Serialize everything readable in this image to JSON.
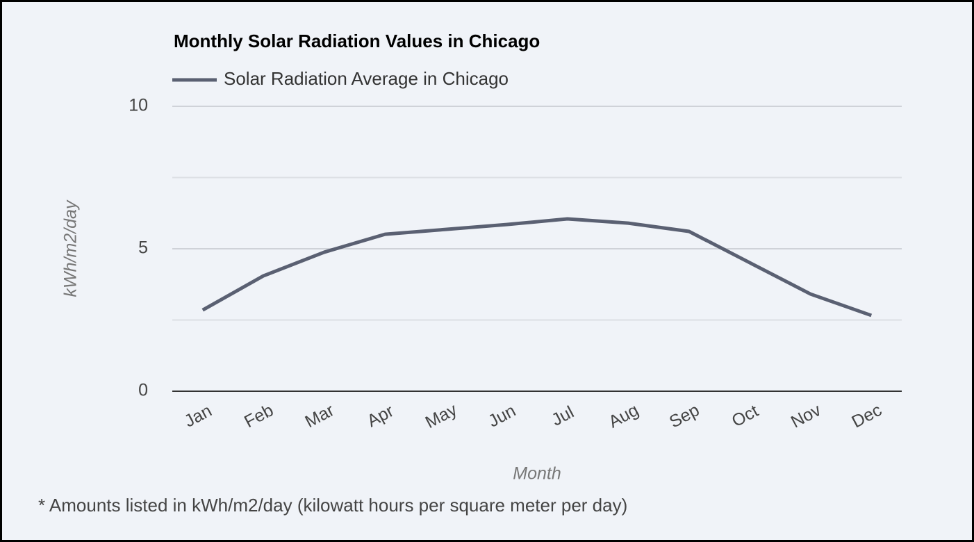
{
  "chart_data": {
    "type": "line",
    "title": "Monthly Solar Radiation Values in Chicago",
    "x_label": "Month",
    "y_label": "kWh/m2/day",
    "footnote": "* Amounts listed in kWh/m2/day (kilowatt hours per square meter per day)",
    "categories": [
      "Jan",
      "Feb",
      "Mar",
      "Apr",
      "May",
      "Jun",
      "Jul",
      "Aug",
      "Sep",
      "Oct",
      "Nov",
      "Dec"
    ],
    "series": [
      {
        "name": "Solar Radiation Average in Chicago",
        "color": "#5a6072",
        "values": [
          2.85,
          4.05,
          4.88,
          5.51,
          5.68,
          5.85,
          6.05,
          5.9,
          5.61,
          4.51,
          3.41,
          2.66
        ]
      }
    ],
    "ylim": [
      0,
      10
    ],
    "yticks": [
      0,
      5,
      10
    ],
    "yminorticks": [
      2.5,
      7.5
    ],
    "grid": true
  }
}
